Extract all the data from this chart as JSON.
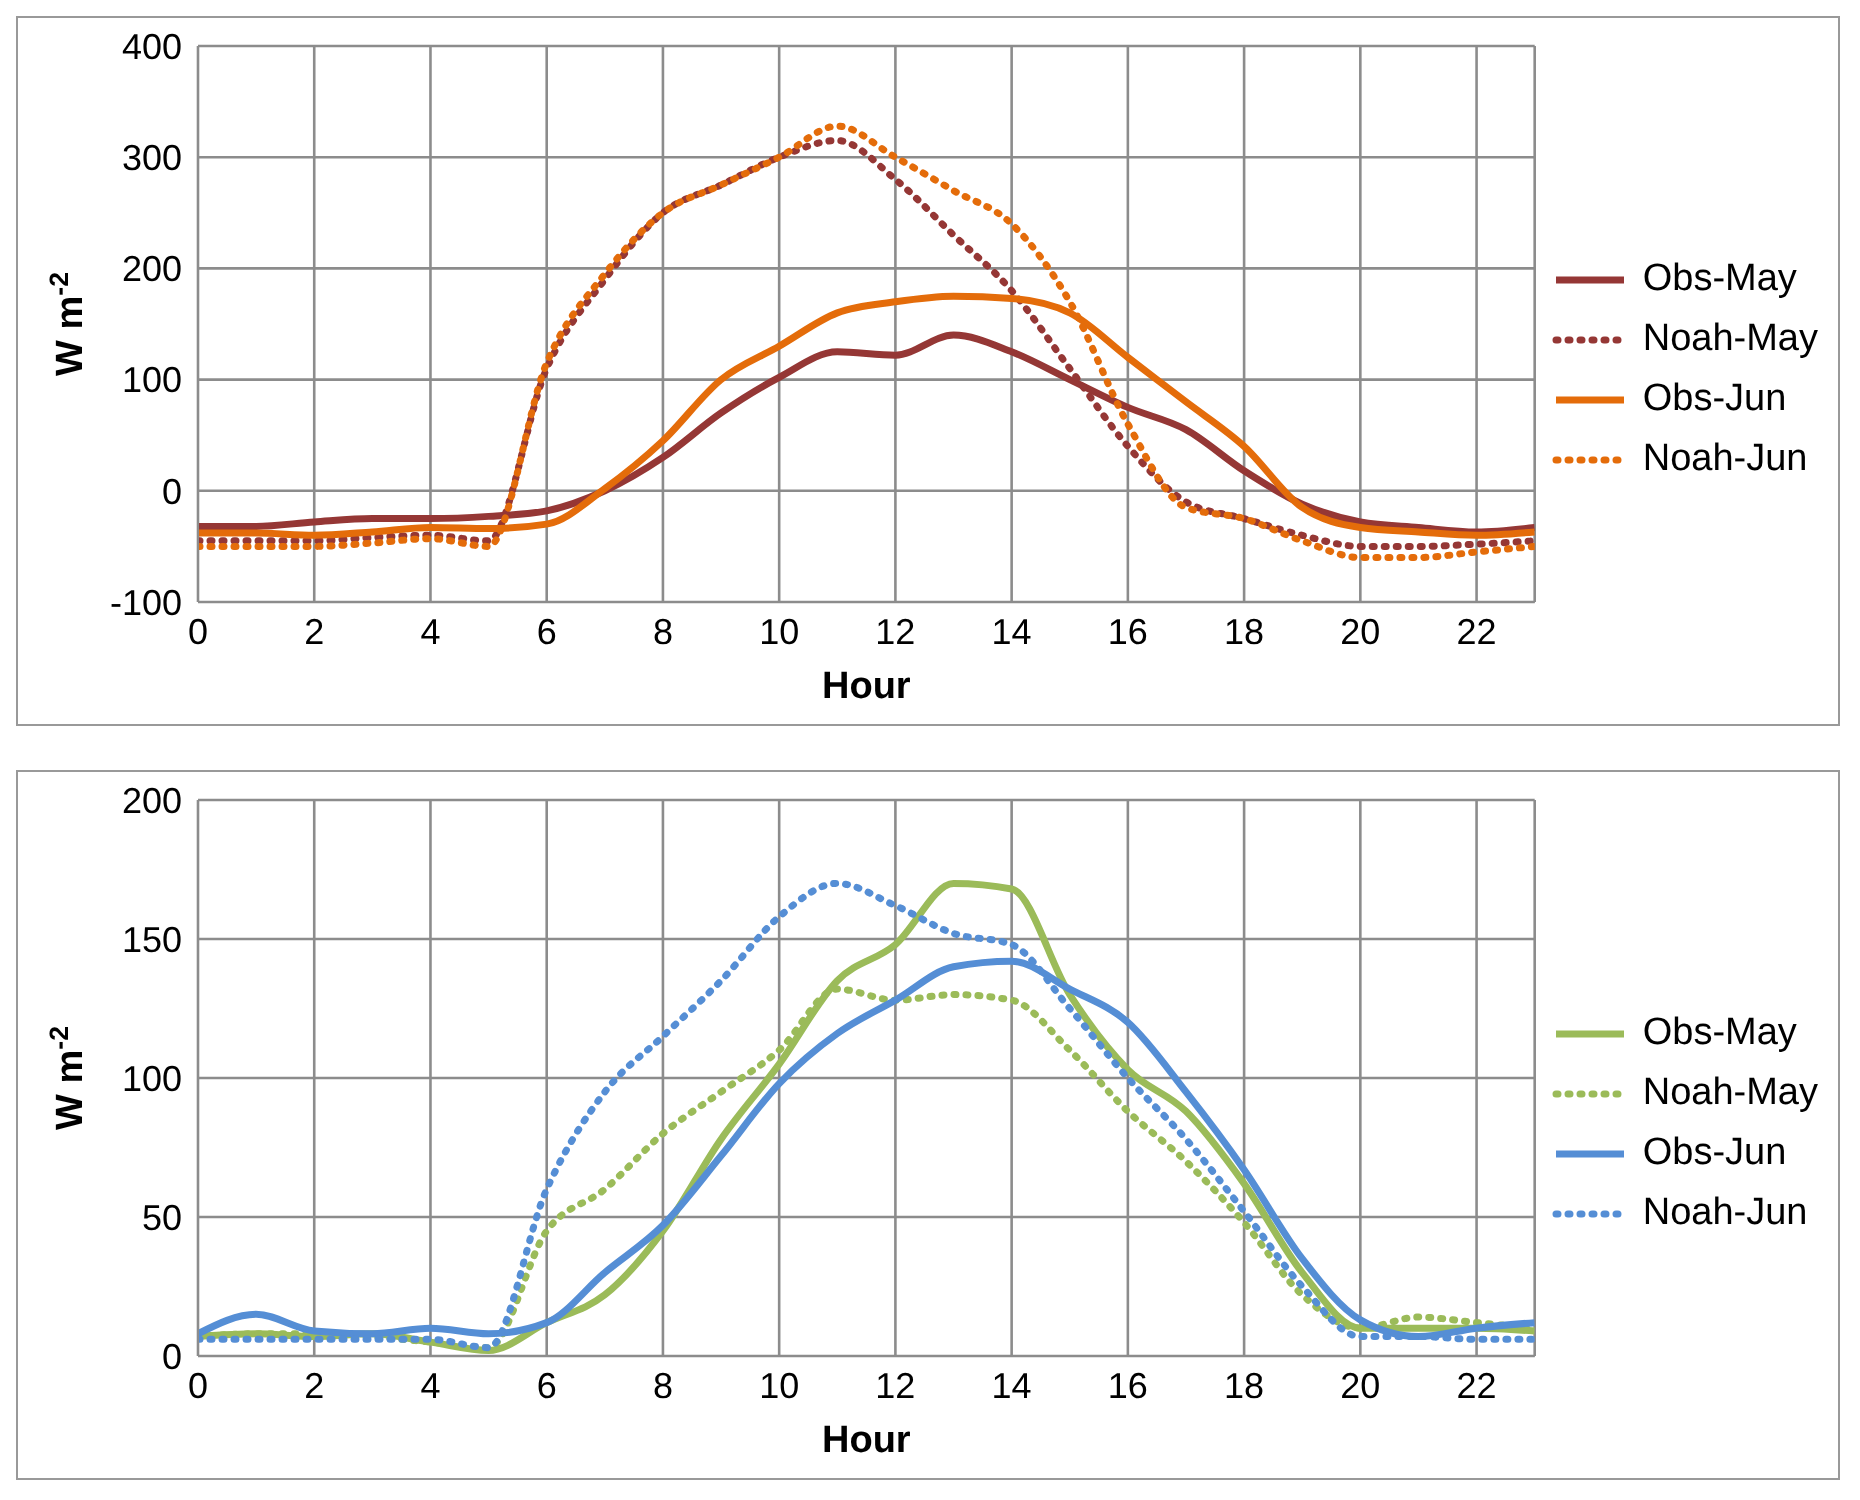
{
  "chart_data": [
    {
      "type": "line",
      "xlabel": "Hour",
      "ylabel": "W m$^{-2}$",
      "x": [
        0,
        1,
        2,
        3,
        4,
        5,
        6,
        7,
        8,
        9,
        10,
        11,
        12,
        13,
        14,
        15,
        16,
        17,
        18,
        19,
        20,
        21,
        22,
        23
      ],
      "xlim": [
        0,
        23
      ],
      "xticks": [
        0,
        2,
        4,
        6,
        8,
        10,
        12,
        14,
        16,
        18,
        20,
        22
      ],
      "ylim": [
        -100,
        400
      ],
      "yticks": [
        -100,
        0,
        100,
        200,
        300,
        400
      ],
      "grid": true,
      "legend": "right",
      "marker": "none",
      "series": [
        {
          "name": "Obs-May",
          "color": "#953735",
          "line_style": "solid",
          "values": [
            -32,
            -32,
            -28,
            -25,
            -25,
            -23,
            -18,
            0,
            30,
            70,
            102,
            125,
            122,
            140,
            125,
            100,
            75,
            55,
            18,
            -12,
            -28,
            -33,
            -37,
            -33
          ]
        },
        {
          "name": "Noah-May",
          "color": "#953735",
          "line_style": "dotted",
          "values": [
            -45,
            -45,
            -45,
            -42,
            -40,
            -45,
            110,
            190,
            250,
            275,
            300,
            315,
            280,
            230,
            180,
            110,
            40,
            -10,
            -25,
            -40,
            -50,
            -50,
            -48,
            -45
          ]
        },
        {
          "name": "Obs-Jun",
          "color": "#e46c0a",
          "line_style": "solid",
          "values": [
            -38,
            -38,
            -40,
            -37,
            -33,
            -34,
            -30,
            2,
            45,
            100,
            130,
            160,
            170,
            175,
            173,
            160,
            120,
            80,
            40,
            -15,
            -33,
            -37,
            -40,
            -37
          ]
        },
        {
          "name": "Noah-Jun",
          "color": "#e46c0a",
          "line_style": "dotted",
          "values": [
            -50,
            -50,
            -50,
            -47,
            -43,
            -50,
            115,
            195,
            250,
            275,
            300,
            328,
            300,
            270,
            240,
            170,
            60,
            -15,
            -25,
            -45,
            -60,
            -60,
            -55,
            -50
          ]
        }
      ]
    },
    {
      "type": "line",
      "xlabel": "Hour",
      "ylabel": "W m$^{-2}$",
      "x": [
        0,
        1,
        2,
        3,
        4,
        5,
        6,
        7,
        8,
        9,
        10,
        11,
        12,
        13,
        14,
        15,
        16,
        17,
        18,
        19,
        20,
        21,
        22,
        23
      ],
      "xlim": [
        0,
        23
      ],
      "xticks": [
        0,
        2,
        4,
        6,
        8,
        10,
        12,
        14,
        16,
        18,
        20,
        22
      ],
      "ylim": [
        0,
        200
      ],
      "yticks": [
        0,
        50,
        100,
        150,
        200
      ],
      "grid": true,
      "legend": "right",
      "marker": "none",
      "series": [
        {
          "name": "Obs-May",
          "color": "#9bbb59",
          "line_style": "solid",
          "values": [
            7,
            8,
            7,
            8,
            5,
            2,
            12,
            22,
            45,
            78,
            105,
            135,
            148,
            170,
            168,
            130,
            103,
            88,
            62,
            30,
            10,
            10,
            10,
            9
          ]
        },
        {
          "name": "Noah-May",
          "color": "#9bbb59",
          "line_style": "dotted",
          "values": [
            7,
            8,
            8,
            7,
            5,
            3,
            45,
            60,
            80,
            95,
            110,
            132,
            128,
            130,
            128,
            110,
            88,
            70,
            48,
            22,
            10,
            14,
            12,
            10
          ]
        },
        {
          "name": "Obs-Jun",
          "color": "#558ed5",
          "line_style": "solid",
          "values": [
            8,
            15,
            9,
            8,
            10,
            8,
            12,
            30,
            47,
            72,
            98,
            116,
            128,
            140,
            142,
            132,
            120,
            95,
            67,
            35,
            13,
            7,
            10,
            12
          ]
        },
        {
          "name": "Noah-Jun",
          "color": "#558ed5",
          "line_style": "dotted",
          "values": [
            6,
            6,
            6,
            6,
            6,
            3,
            60,
            95,
            115,
            135,
            158,
            170,
            162,
            152,
            148,
            125,
            100,
            78,
            52,
            25,
            7,
            7,
            6,
            6
          ]
        }
      ]
    }
  ]
}
